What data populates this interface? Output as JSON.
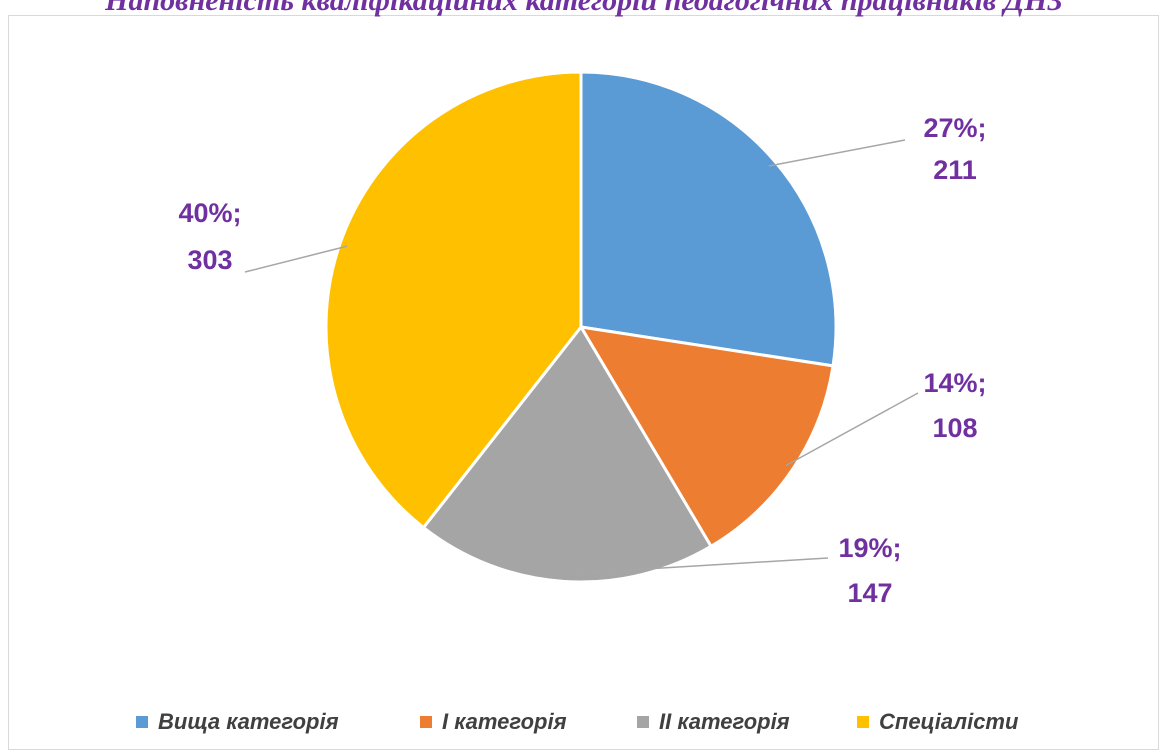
{
  "chart_data": {
    "type": "pie",
    "title": "Наповненість кваліфікаційних категорій педагогічних працівників ДНЗ",
    "categories": [
      "Вища категорія",
      "І категорія",
      "ІІ категорія",
      "Спеціалісти"
    ],
    "values": [
      211,
      108,
      147,
      303
    ],
    "percents": [
      27,
      14,
      19,
      40
    ],
    "percent_labels": [
      "27%;",
      "14%;",
      "19%;",
      "40%;"
    ],
    "colors": [
      "#5b9bd5",
      "#ed7d31",
      "#a5a5a5",
      "#ffc000"
    ],
    "legend": "bottom"
  }
}
